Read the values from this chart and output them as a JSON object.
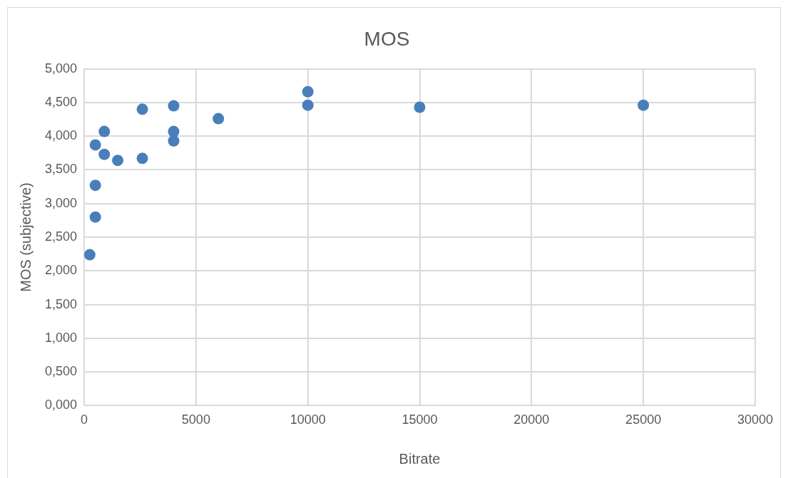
{
  "chart_data": {
    "type": "scatter",
    "title": "MOS",
    "xlabel": "Bitrate",
    "ylabel": "MOS (subjective)",
    "x": [
      250,
      500,
      500,
      500,
      900,
      900,
      1500,
      2600,
      2600,
      4000,
      4000,
      4000,
      6000,
      10000,
      10000,
      15000,
      25000
    ],
    "values": [
      2.24,
      2.8,
      3.27,
      3.87,
      3.73,
      4.07,
      3.64,
      3.67,
      4.4,
      4.45,
      4.07,
      3.93,
      4.26,
      4.66,
      4.46,
      4.43,
      4.46
    ],
    "color": "#4a7ebb",
    "marker": "circle",
    "xlim": [
      0,
      30000
    ],
    "xticks": [
      0,
      5000,
      10000,
      15000,
      20000,
      25000,
      30000
    ],
    "ylim": [
      0,
      5
    ],
    "yticks": [
      {
        "value": 0,
        "label": "0,000"
      },
      {
        "value": 0.5,
        "label": "0,500"
      },
      {
        "value": 1,
        "label": "1,000"
      },
      {
        "value": 1.5,
        "label": "1,500"
      },
      {
        "value": 2,
        "label": "2,000"
      },
      {
        "value": 2.5,
        "label": "2,500"
      },
      {
        "value": 3,
        "label": "3,000"
      },
      {
        "value": 3.5,
        "label": "3,500"
      },
      {
        "value": 4,
        "label": "4,000"
      },
      {
        "value": 4.5,
        "label": "4,500"
      },
      {
        "value": 5,
        "label": "5,000"
      }
    ],
    "grid": true,
    "legend": false
  }
}
